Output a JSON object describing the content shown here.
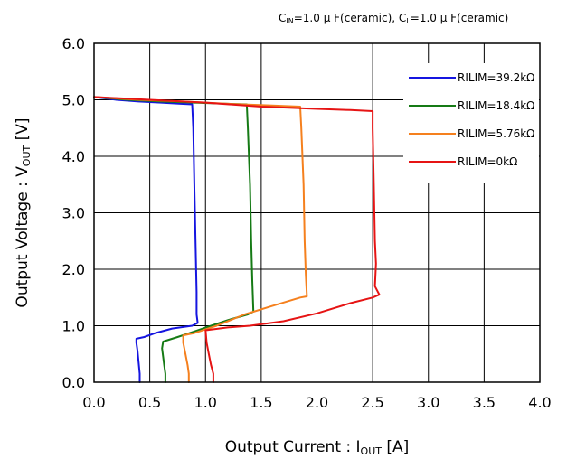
{
  "conditions": {
    "cin": "C",
    "cin_sub": "IN",
    "cin_rest": "=1.0 μ F(ceramic), ",
    "cl": "C",
    "cl_sub": "L",
    "cl_rest": "=1.0 μ F(ceramic)"
  },
  "chart_data": {
    "type": "line",
    "xlabel": "Output Current : I",
    "xlabel_sub": "OUT",
    "xlabel_unit": " [A]",
    "ylabel": "Output Voltage : V",
    "ylabel_sub": "OUT",
    "ylabel_unit": " [V]",
    "xlim": [
      0,
      4
    ],
    "ylim": [
      0,
      6
    ],
    "xticks": [
      "0.0",
      "0.5",
      "1.0",
      "1.5",
      "2.0",
      "2.5",
      "3.0",
      "3.5",
      "4.0"
    ],
    "yticks": [
      "0.0",
      "1.0",
      "2.0",
      "3.0",
      "4.0",
      "5.0",
      "6.0"
    ],
    "grid": true,
    "legend_position": "top-right",
    "series": [
      {
        "name": "RILIM=39.2kΩ",
        "color": "#1515e0",
        "points": [
          [
            0.0,
            5.05
          ],
          [
            0.2,
            5.0
          ],
          [
            0.4,
            4.97
          ],
          [
            0.6,
            4.95
          ],
          [
            0.78,
            4.93
          ],
          [
            0.88,
            4.92
          ],
          [
            0.89,
            4.5
          ],
          [
            0.9,
            3.5
          ],
          [
            0.91,
            2.5
          ],
          [
            0.92,
            1.6
          ],
          [
            0.92,
            1.2
          ],
          [
            0.93,
            1.05
          ],
          [
            0.88,
            1.0
          ],
          [
            0.7,
            0.95
          ],
          [
            0.55,
            0.87
          ],
          [
            0.45,
            0.8
          ],
          [
            0.38,
            0.77
          ],
          [
            0.38,
            0.7
          ],
          [
            0.39,
            0.55
          ],
          [
            0.4,
            0.35
          ],
          [
            0.41,
            0.15
          ],
          [
            0.41,
            0.0
          ]
        ]
      },
      {
        "name": "RILIM=18.4kΩ",
        "color": "#157a15",
        "points": [
          [
            0.0,
            5.05
          ],
          [
            0.3,
            5.0
          ],
          [
            0.6,
            4.97
          ],
          [
            0.9,
            4.95
          ],
          [
            1.2,
            4.93
          ],
          [
            1.37,
            4.92
          ],
          [
            1.38,
            4.5
          ],
          [
            1.4,
            3.5
          ],
          [
            1.41,
            2.5
          ],
          [
            1.42,
            1.8
          ],
          [
            1.43,
            1.25
          ],
          [
            1.38,
            1.2
          ],
          [
            1.2,
            1.1
          ],
          [
            1.05,
            1.0
          ],
          [
            0.9,
            0.9
          ],
          [
            0.75,
            0.8
          ],
          [
            0.62,
            0.72
          ],
          [
            0.61,
            0.6
          ],
          [
            0.62,
            0.45
          ],
          [
            0.63,
            0.3
          ],
          [
            0.64,
            0.15
          ],
          [
            0.64,
            0.0
          ]
        ]
      },
      {
        "name": "RILIM=5.76kΩ",
        "color": "#f5801e",
        "points": [
          [
            0.0,
            5.05
          ],
          [
            0.4,
            5.0
          ],
          [
            0.8,
            4.97
          ],
          [
            1.2,
            4.93
          ],
          [
            1.6,
            4.9
          ],
          [
            1.85,
            4.88
          ],
          [
            1.86,
            4.5
          ],
          [
            1.88,
            3.5
          ],
          [
            1.89,
            2.5
          ],
          [
            1.9,
            1.9
          ],
          [
            1.91,
            1.52
          ],
          [
            1.85,
            1.5
          ],
          [
            1.6,
            1.35
          ],
          [
            1.35,
            1.2
          ],
          [
            1.1,
            1.0
          ],
          [
            0.9,
            0.87
          ],
          [
            0.8,
            0.83
          ],
          [
            0.8,
            0.7
          ],
          [
            0.82,
            0.5
          ],
          [
            0.84,
            0.3
          ],
          [
            0.85,
            0.15
          ],
          [
            0.85,
            0.0
          ]
        ]
      },
      {
        "name": "RILIM=0kΩ",
        "color": "#e61414",
        "points": [
          [
            0.0,
            5.05
          ],
          [
            0.5,
            5.0
          ],
          [
            1.0,
            4.95
          ],
          [
            1.5,
            4.88
          ],
          [
            2.0,
            4.84
          ],
          [
            2.3,
            4.82
          ],
          [
            2.5,
            4.8
          ],
          [
            2.5,
            4.5
          ],
          [
            2.51,
            3.5
          ],
          [
            2.52,
            2.5
          ],
          [
            2.53,
            2.1
          ],
          [
            2.52,
            1.7
          ],
          [
            2.56,
            1.55
          ],
          [
            2.5,
            1.5
          ],
          [
            2.3,
            1.4
          ],
          [
            2.0,
            1.22
          ],
          [
            1.7,
            1.08
          ],
          [
            1.4,
            1.0
          ],
          [
            1.2,
            0.97
          ],
          [
            1.0,
            0.92
          ],
          [
            1.01,
            0.7
          ],
          [
            1.03,
            0.5
          ],
          [
            1.05,
            0.3
          ],
          [
            1.07,
            0.15
          ],
          [
            1.07,
            0.0
          ]
        ]
      }
    ]
  }
}
